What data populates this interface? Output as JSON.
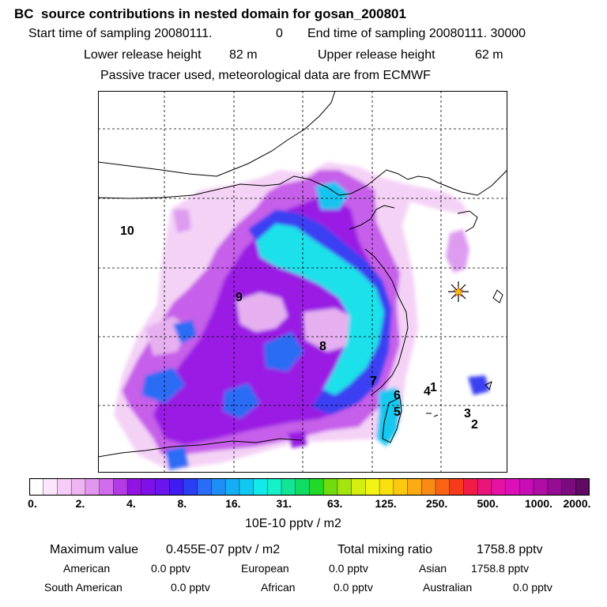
{
  "header": {
    "title": "BC  source contributions in nested domain for gosan_200801",
    "start_label": "Start time of sampling 20080111.",
    "start_hour": "0",
    "end_label": "End time of sampling 20080111. 30000",
    "lower_label": "Lower release height",
    "lower_value": "82 m",
    "upper_label": "Upper release height",
    "upper_value": "62 m",
    "tracer_note": "Passive tracer used, meteorological data are from ECMWF"
  },
  "map": {
    "region_labels": [
      "10",
      "9",
      "8",
      "7",
      "6",
      "5",
      "4",
      "1",
      "3",
      "2"
    ],
    "receptor_marker": "asterisk-star-icon"
  },
  "colorbar": {
    "ticks": [
      "0.",
      "2.",
      "4.",
      "8.",
      "16.",
      "31.",
      "63.",
      "125.",
      "250.",
      "500.",
      "1000.",
      "2000."
    ],
    "unit": "10E-10 pptv / m2",
    "colors": [
      "#ffffff",
      "#fbe6fb",
      "#f6cdf6",
      "#efb4f2",
      "#e196ef",
      "#d16ceb",
      "#b33be6",
      "#9214e3",
      "#7e10e8",
      "#6a15ec",
      "#3f1cf0",
      "#2a3ff4",
      "#2b6cf6",
      "#1e8ef6",
      "#14aef6",
      "#13c8f0",
      "#12eaea",
      "#14f0c8",
      "#12e696",
      "#10dc64",
      "#22d828",
      "#70dc10",
      "#a6e410",
      "#d4ee10",
      "#f4f414",
      "#fbe010",
      "#fcc810",
      "#fbac12",
      "#f98a14",
      "#f86414",
      "#f63a1c",
      "#f01c46",
      "#ea147a",
      "#e612a4",
      "#dc10b8",
      "#c80cb6",
      "#b00ca6",
      "#960c94",
      "#7c0c7e",
      "#600a64"
    ]
  },
  "footer": {
    "max_label": "Maximum value",
    "max_value": "0.455E-07 pptv / m2",
    "total_label": "Total mixing ratio",
    "total_value": "1758.8 pptv",
    "contributions": [
      {
        "name": "American",
        "value": "0.0 pptv"
      },
      {
        "name": "European",
        "value": "0.0 pptv"
      },
      {
        "name": "Asian",
        "value": "1758.8 pptv"
      },
      {
        "name": "South American",
        "value": "0.0 pptv"
      },
      {
        "name": "African",
        "value": "0.0 pptv"
      },
      {
        "name": "Australian",
        "value": "0.0 pptv"
      }
    ]
  }
}
